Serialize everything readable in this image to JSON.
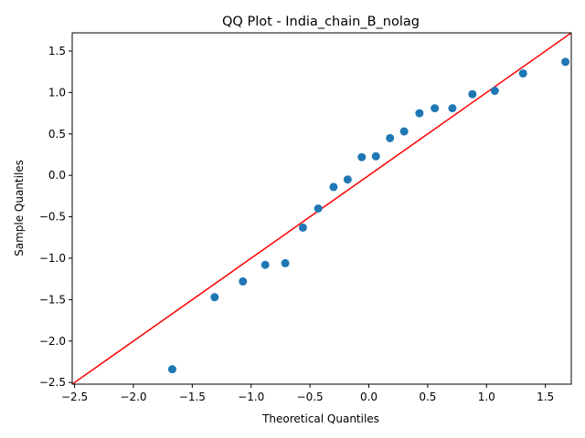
{
  "chart_data": {
    "type": "scatter",
    "title": "QQ Plot - India_chain_B_nolag",
    "xlabel": "Theoretical Quantiles",
    "ylabel": "Sample Quantiles",
    "xlim": [
      -2.52,
      1.72
    ],
    "ylim": [
      -2.52,
      1.72
    ],
    "xticks": [
      -2.5,
      -2.0,
      -1.5,
      -1.0,
      -0.5,
      0.0,
      0.5,
      1.0,
      1.5
    ],
    "yticks": [
      -2.5,
      -2.0,
      -1.5,
      -1.0,
      -0.5,
      0.0,
      0.5,
      1.0,
      1.5
    ],
    "grid": false,
    "point_color": "#1f77b4",
    "line_color": "#ff0000",
    "reference_line": {
      "slope": 1,
      "intercept": 0
    },
    "series": [
      {
        "x": [
          -1.67,
          -1.31,
          -1.07,
          -0.88,
          -0.71,
          -0.56,
          -0.43,
          -0.3,
          -0.18,
          -0.06,
          0.06,
          0.18,
          0.3,
          0.43,
          0.56,
          0.71,
          0.88,
          1.07,
          1.31,
          1.67
        ],
        "y": [
          -2.34,
          -1.47,
          -1.28,
          -1.08,
          -1.06,
          -0.63,
          -0.4,
          -0.14,
          -0.05,
          0.22,
          0.23,
          0.45,
          0.53,
          0.75,
          0.81,
          0.81,
          0.98,
          1.02,
          1.23,
          1.37
        ]
      }
    ]
  }
}
